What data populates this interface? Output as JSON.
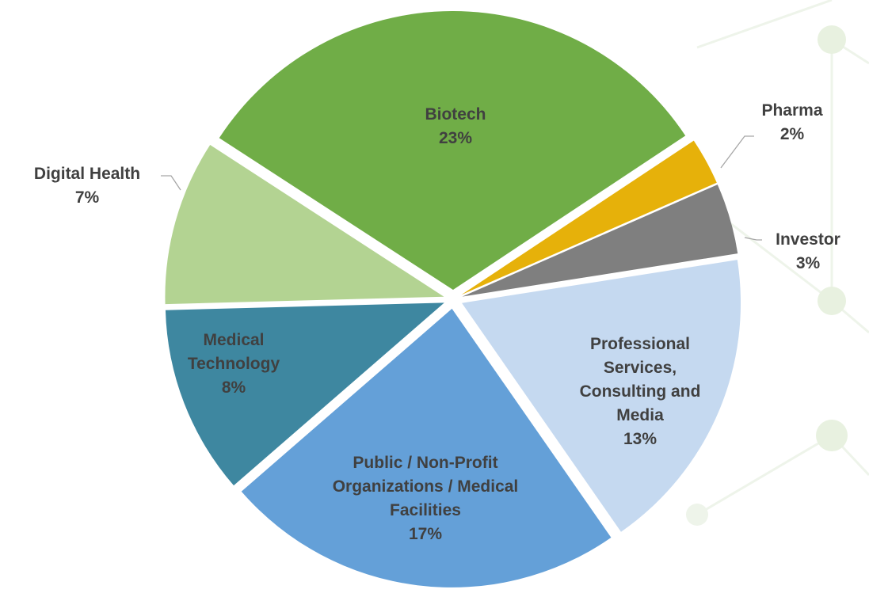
{
  "chart_data": {
    "type": "pie",
    "categories": [
      "Biotech",
      "Pharma",
      "Investor",
      "Professional Services, Consulting and Media",
      "Public  / Non-Profit Organizations / Medical Facilities",
      "Medical Technology",
      "Digital Health"
    ],
    "values": [
      23,
      2,
      3,
      13,
      17,
      8,
      7
    ],
    "value_labels": [
      "23%",
      "2%",
      "3%",
      "13%",
      "17%",
      "8%",
      "7%"
    ],
    "colors": [
      "#70ad47",
      "#e6b10a",
      "#7f7f7f",
      "#c5d9f0",
      "#64a0d8",
      "#3e87a0",
      "#b3d392"
    ]
  }
}
